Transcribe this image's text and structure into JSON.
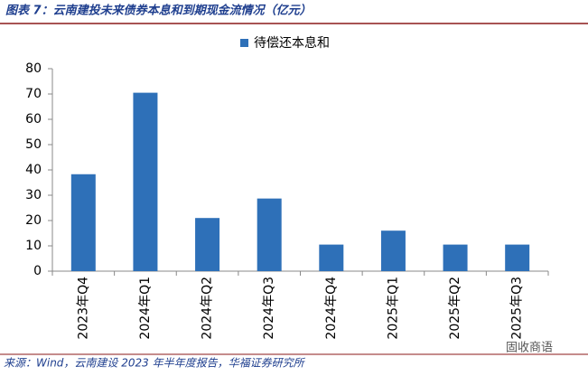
{
  "chart_data": {
    "type": "bar",
    "title": "图表 7：云南建投未来债券本息和到期现金流情况（亿元）",
    "categories": [
      "2023年Q4",
      "2024年Q1",
      "2024年Q2",
      "2024年Q3",
      "2024年Q4",
      "2025年Q1",
      "2025年Q2",
      "2025年Q3"
    ],
    "series": [
      {
        "name": "待偿还本息和",
        "color": "#2e70b8",
        "values": [
          38.3,
          70.5,
          21,
          28.7,
          10.5,
          16,
          10.5,
          10.5
        ]
      }
    ],
    "ylim": [
      0,
      80
    ],
    "yticks": [
      0,
      10,
      20,
      30,
      40,
      50,
      60,
      70,
      80
    ],
    "source": "来源：Wind，云南建设 2023 年半年度报告，华福证券研究所",
    "watermark": "固收商语"
  }
}
